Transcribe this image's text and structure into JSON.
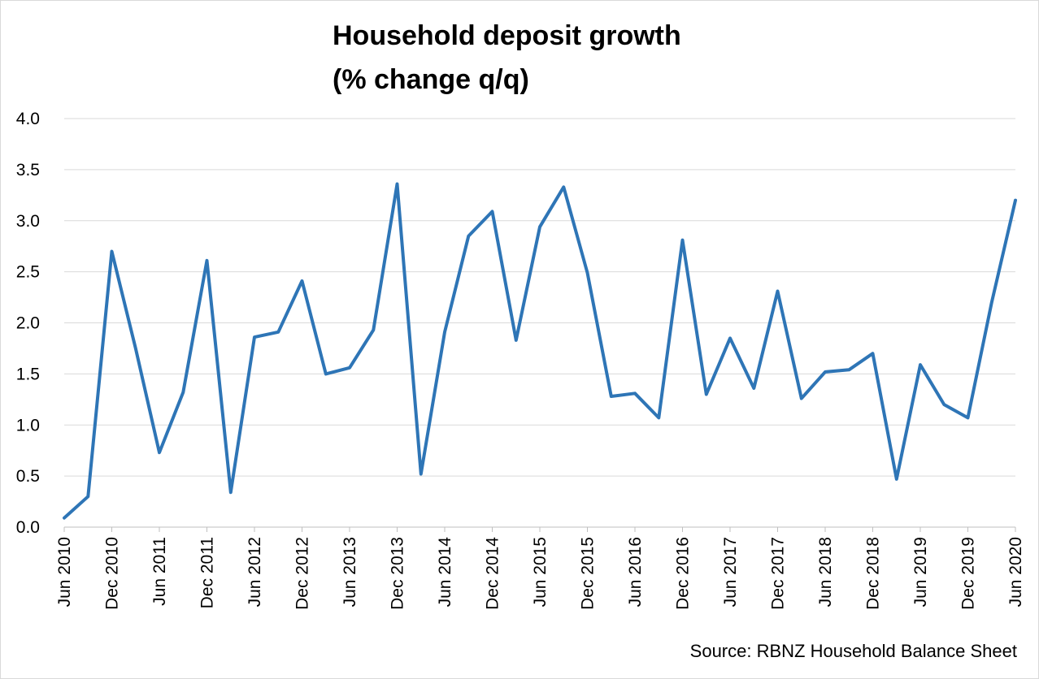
{
  "title_lines": [
    "Household deposit growth",
    "(% change q/q)"
  ],
  "source": "Source: RBNZ Household Balance Sheet",
  "chart_data": {
    "type": "line",
    "title": "Household deposit growth (% change q/q)",
    "xlabel": "",
    "ylabel": "",
    "ylim": [
      0,
      4
    ],
    "yticks": [
      "0.0",
      "0.5",
      "1.0",
      "1.5",
      "2.0",
      "2.5",
      "3.0",
      "3.5",
      "4.0"
    ],
    "grid": true,
    "legend": "none",
    "x": [
      "Jun 2010",
      "Sep 2010",
      "Dec 2010",
      "Mar 2011",
      "Jun 2011",
      "Sep 2011",
      "Dec 2011",
      "Mar 2012",
      "Jun 2012",
      "Sep 2012",
      "Dec 2012",
      "Mar 2013",
      "Jun 2013",
      "Sep 2013",
      "Dec 2013",
      "Mar 2014",
      "Jun 2014",
      "Sep 2014",
      "Dec 2014",
      "Mar 2015",
      "Jun 2015",
      "Sep 2015",
      "Dec 2015",
      "Mar 2016",
      "Jun 2016",
      "Sep 2016",
      "Dec 2016",
      "Mar 2017",
      "Jun 2017",
      "Sep 2017",
      "Dec 2017",
      "Mar 2018",
      "Jun 2018",
      "Sep 2018",
      "Dec 2018",
      "Mar 2019",
      "Jun 2019",
      "Sep 2019",
      "Dec 2019",
      "Mar 2020",
      "Jun 2020"
    ],
    "xtick_labels": [
      "Jun 2010",
      "Dec 2010",
      "Jun 2011",
      "Dec 2011",
      "Jun 2012",
      "Dec 2012",
      "Jun 2013",
      "Dec 2013",
      "Jun 2014",
      "Dec 2014",
      "Jun 2015",
      "Dec 2015",
      "Jun 2016",
      "Dec 2016",
      "Jun 2017",
      "Dec 2017",
      "Jun 2018",
      "Dec 2018",
      "Jun 2019",
      "Dec 2019",
      "Jun 2020"
    ],
    "series": [
      {
        "values": [
          0.09,
          0.3,
          2.7,
          1.75,
          0.73,
          1.32,
          2.61,
          0.34,
          1.86,
          1.91,
          2.41,
          1.5,
          1.56,
          1.93,
          3.36,
          0.52,
          1.91,
          2.85,
          3.09,
          1.83,
          2.94,
          3.33,
          2.49,
          1.28,
          1.31,
          1.07,
          2.81,
          1.3,
          1.85,
          1.36,
          2.31,
          1.26,
          1.52,
          1.54,
          1.7,
          0.47,
          1.59,
          1.2,
          1.07,
          2.2,
          3.2
        ],
        "color": "#2E75B6"
      }
    ]
  }
}
